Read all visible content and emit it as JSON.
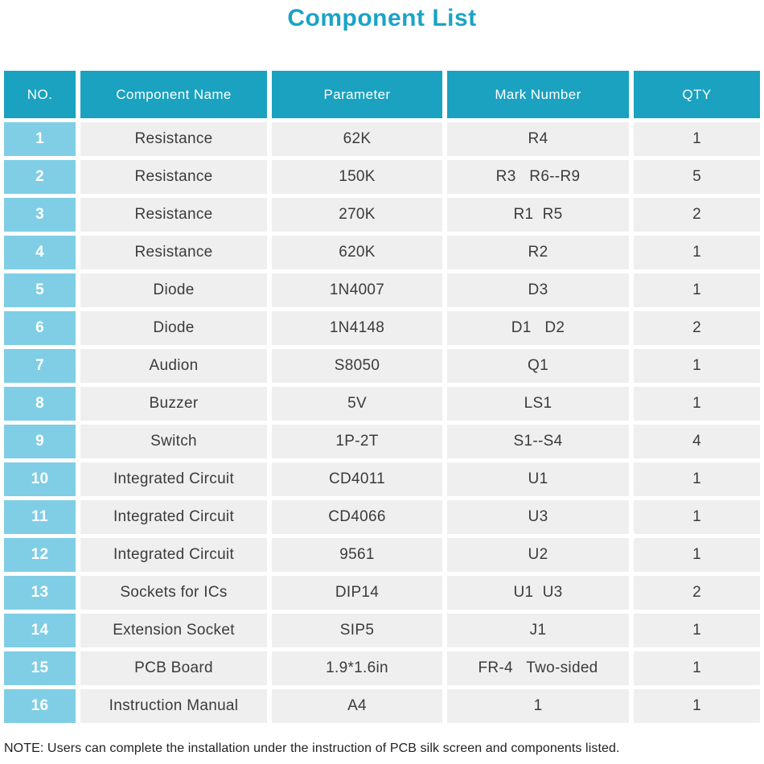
{
  "title": "Component List",
  "colors": {
    "accent_teal": "#1aa2c0",
    "title_teal": "#1ba3c6",
    "row_number_blue": "#7fcee5",
    "cell_gray": "#efefef",
    "header_text": "#ffffff",
    "body_text": "#3b3b3b"
  },
  "table": {
    "columns": [
      "NO.",
      "Component Name",
      "Parameter",
      "Mark Number",
      "QTY"
    ],
    "rows": [
      {
        "no": "1",
        "name": "Resistance",
        "param": "62K",
        "mark": "R4",
        "qty": "1"
      },
      {
        "no": "2",
        "name": "Resistance",
        "param": "150K",
        "mark": "R3   R6--R9",
        "qty": "5"
      },
      {
        "no": "3",
        "name": "Resistance",
        "param": "270K",
        "mark": "R1  R5",
        "qty": "2"
      },
      {
        "no": "4",
        "name": "Resistance",
        "param": "620K",
        "mark": "R2",
        "qty": "1"
      },
      {
        "no": "5",
        "name": "Diode",
        "param": "1N4007",
        "mark": "D3",
        "qty": "1"
      },
      {
        "no": "6",
        "name": "Diode",
        "param": "1N4148",
        "mark": "D1   D2",
        "qty": "2"
      },
      {
        "no": "7",
        "name": "Audion",
        "param": "S8050",
        "mark": "Q1",
        "qty": "1"
      },
      {
        "no": "8",
        "name": "Buzzer",
        "param": "5V",
        "mark": "LS1",
        "qty": "1"
      },
      {
        "no": "9",
        "name": "Switch",
        "param": "1P-2T",
        "mark": "S1--S4",
        "qty": "4"
      },
      {
        "no": "10",
        "name": "Integrated Circuit",
        "param": "CD4011",
        "mark": "U1",
        "qty": "1"
      },
      {
        "no": "11",
        "name": "Integrated Circuit",
        "param": "CD4066",
        "mark": "U3",
        "qty": "1"
      },
      {
        "no": "12",
        "name": "Integrated Circuit",
        "param": "9561",
        "mark": "U2",
        "qty": "1"
      },
      {
        "no": "13",
        "name": "Sockets for ICs",
        "param": "DIP14",
        "mark": "U1  U3",
        "qty": "2"
      },
      {
        "no": "14",
        "name": "Extension Socket",
        "param": "SIP5",
        "mark": "J1",
        "qty": "1"
      },
      {
        "no": "15",
        "name": "PCB Board",
        "param": "1.9*1.6in",
        "mark": "FR-4   Two-sided",
        "qty": "1"
      },
      {
        "no": "16",
        "name": "Instruction Manual",
        "param": "A4",
        "mark": "1",
        "qty": "1"
      }
    ]
  },
  "note": "NOTE: Users can complete the installation under the instruction of PCB silk screen and components listed."
}
